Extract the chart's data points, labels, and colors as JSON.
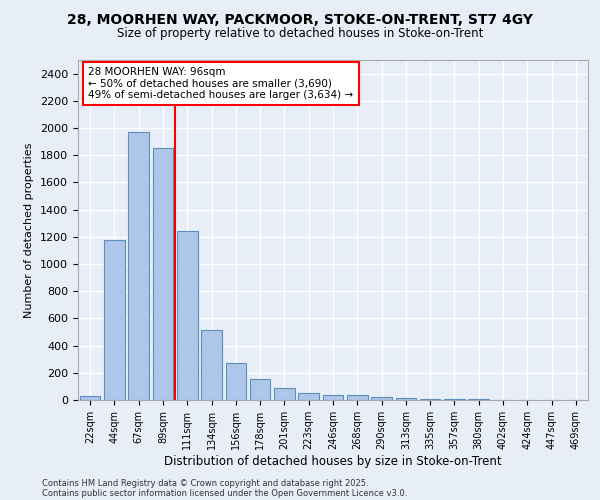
{
  "title_line1": "28, MOORHEN WAY, PACKMOOR, STOKE-ON-TRENT, ST7 4GY",
  "title_line2": "Size of property relative to detached houses in Stoke-on-Trent",
  "xlabel": "Distribution of detached houses by size in Stoke-on-Trent",
  "ylabel": "Number of detached properties",
  "categories": [
    "22sqm",
    "44sqm",
    "67sqm",
    "89sqm",
    "111sqm",
    "134sqm",
    "156sqm",
    "178sqm",
    "201sqm",
    "223sqm",
    "246sqm",
    "268sqm",
    "290sqm",
    "313sqm",
    "335sqm",
    "357sqm",
    "380sqm",
    "402sqm",
    "424sqm",
    "447sqm",
    "469sqm"
  ],
  "values": [
    30,
    1175,
    1970,
    1855,
    1240,
    515,
    270,
    155,
    90,
    50,
    40,
    35,
    20,
    15,
    10,
    8,
    5,
    3,
    2,
    1,
    1
  ],
  "bar_color": "#aec6e8",
  "bar_edge_color": "#5a8fc0",
  "vline_x": 3.5,
  "vline_color": "red",
  "annotation_text": "28 MOORHEN WAY: 96sqm\n← 50% of detached houses are smaller (3,690)\n49% of semi-detached houses are larger (3,634) →",
  "annotation_box_color": "white",
  "annotation_box_edge_color": "red",
  "ylim": [
    0,
    2500
  ],
  "yticks": [
    0,
    200,
    400,
    600,
    800,
    1000,
    1200,
    1400,
    1600,
    1800,
    2000,
    2200,
    2400
  ],
  "background_color": "#e8eef8",
  "plot_bg_color": "#e8eef8",
  "grid_color": "white",
  "footer_line1": "Contains HM Land Registry data © Crown copyright and database right 2025.",
  "footer_line2": "Contains public sector information licensed under the Open Government Licence v3.0."
}
